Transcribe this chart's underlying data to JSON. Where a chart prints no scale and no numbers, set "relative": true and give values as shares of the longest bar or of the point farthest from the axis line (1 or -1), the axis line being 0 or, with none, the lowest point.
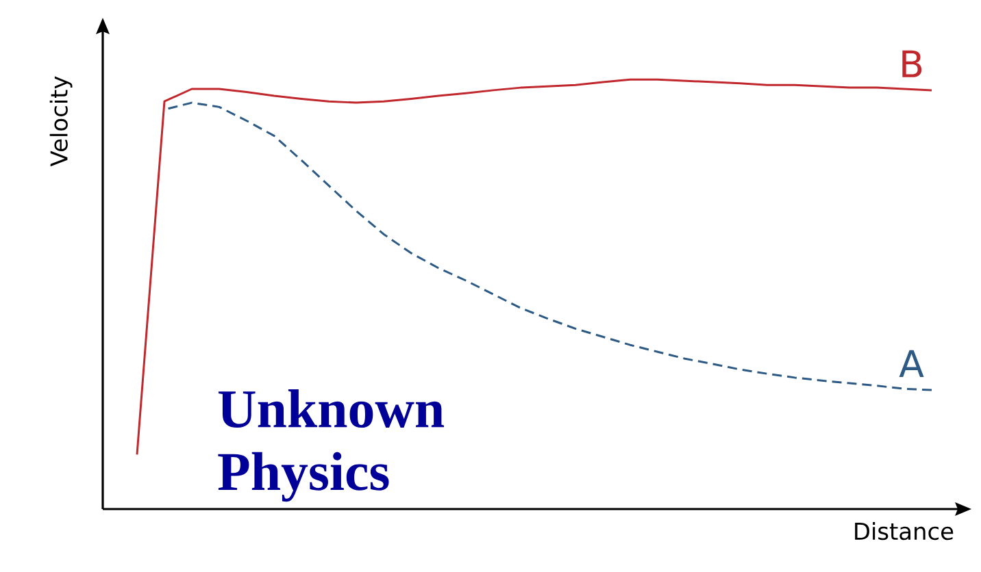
{
  "chart_data": {
    "type": "line",
    "relative": true,
    "xlabel": "Distance",
    "ylabel": "Velocity",
    "categories": [
      null,
      null,
      null,
      null,
      null,
      null,
      null,
      null,
      null,
      null,
      null,
      null,
      null,
      null,
      null,
      null,
      null,
      null,
      null,
      null,
      null,
      null,
      null,
      null,
      null,
      null,
      null,
      null,
      null,
      null
    ],
    "series": [
      {
        "name": "B",
        "color": "#c0282d",
        "line_style": "solid",
        "values": [
          0.127,
          0.949,
          0.978,
          0.978,
          0.971,
          0.962,
          0.955,
          0.949,
          0.946,
          0.949,
          0.955,
          0.962,
          0.968,
          0.975,
          0.981,
          0.984,
          0.987,
          0.994,
          1.0,
          1.0,
          0.997,
          0.994,
          0.991,
          0.987,
          0.987,
          0.984,
          0.981,
          0.981,
          0.978,
          0.975
        ]
      },
      {
        "name": "A",
        "color": "#2c5a85",
        "line_style": "dashed",
        "values": [
          null,
          0.93,
          0.946,
          0.936,
          0.904,
          0.869,
          0.812,
          0.753,
          0.694,
          0.64,
          0.596,
          0.561,
          0.532,
          0.5,
          0.468,
          0.443,
          0.42,
          0.401,
          0.382,
          0.366,
          0.35,
          0.338,
          0.325,
          0.315,
          0.306,
          0.299,
          0.293,
          0.287,
          0.28,
          0.277
        ]
      }
    ],
    "annotations": [
      "Unknown Physics"
    ]
  }
}
